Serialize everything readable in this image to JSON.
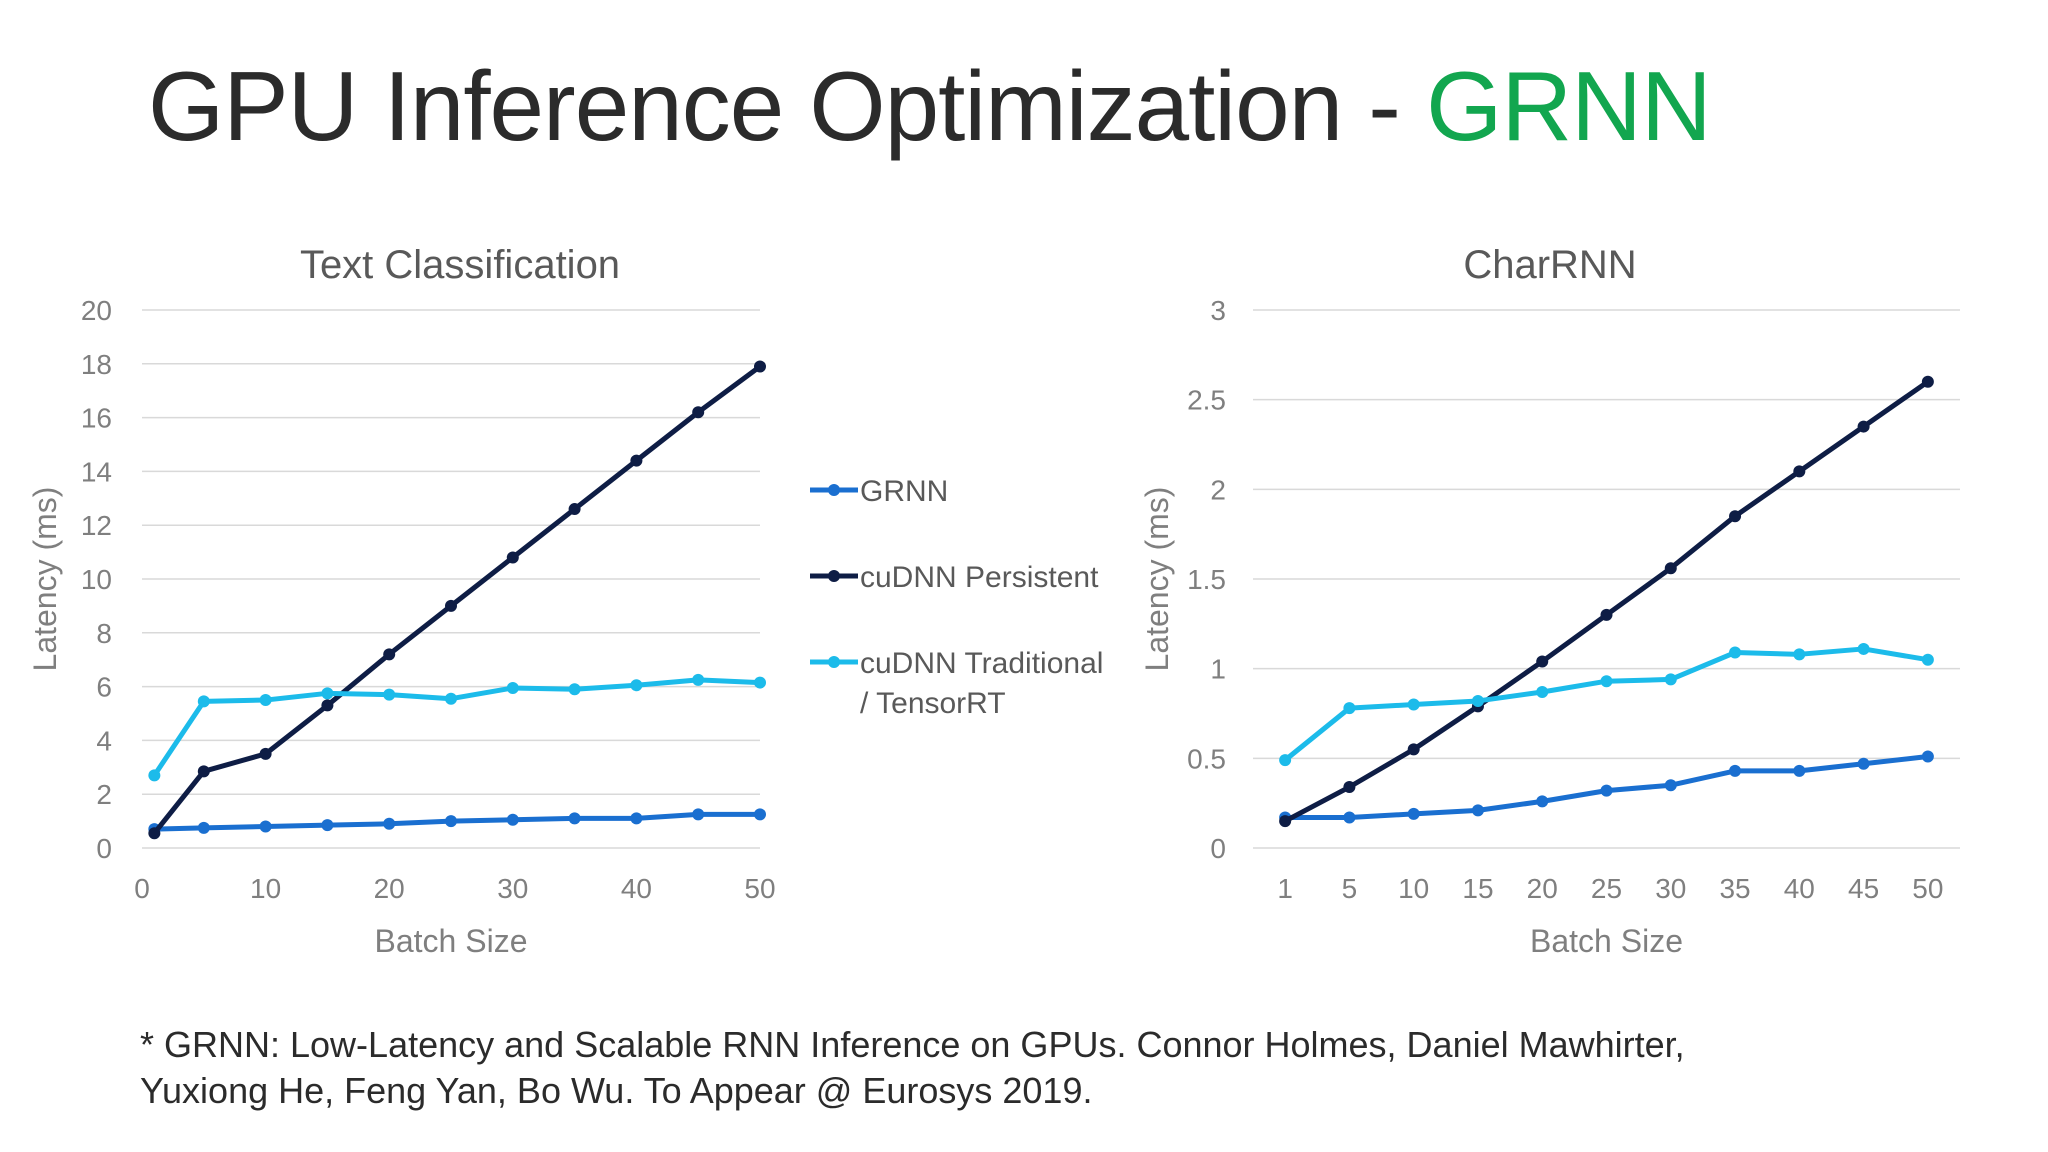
{
  "slide": {
    "title_main": "GPU Inference Optimization - ",
    "title_accent": "GRNN",
    "footnote_line1": "* GRNN: Low-Latency and Scalable RNN Inference on GPUs. Connor Holmes, Daniel Mawhirter,",
    "footnote_line2": "Yuxiong He, Feng Yan, Bo Wu.  To Appear @ Eurosys 2019."
  },
  "colors": {
    "grnn": "#1a6fd0",
    "cudnn_persistent": "#0e1d45",
    "cudnn_traditional": "#1cbbea",
    "grid": "#d9d9d9",
    "axis_text": "#7f7f7f",
    "title_accent": "#12a64f"
  },
  "legend": {
    "placement": "between-charts",
    "entries": [
      "GRNN",
      "cuDNN Persistent",
      "cuDNN Traditional / TensorRT"
    ]
  },
  "chart_data": [
    {
      "type": "line",
      "title": "Text Classification",
      "xlabel": "Batch Size",
      "ylabel": "Latency (ms)",
      "xlim": [
        0,
        50
      ],
      "ylim": [
        0,
        20
      ],
      "xticks": [
        "0",
        "10",
        "20",
        "30",
        "40",
        "50"
      ],
      "yticks": [
        "0",
        "2",
        "4",
        "6",
        "8",
        "10",
        "12",
        "14",
        "16",
        "18",
        "20"
      ],
      "grid": true,
      "x": [
        1,
        5,
        10,
        15,
        20,
        25,
        30,
        35,
        40,
        45,
        50
      ],
      "series": [
        {
          "name": "GRNN",
          "values": [
            0.7,
            0.75,
            0.8,
            0.85,
            0.9,
            1.0,
            1.05,
            1.1,
            1.1,
            1.25,
            1.25
          ]
        },
        {
          "name": "cuDNN Persistent",
          "values": [
            0.55,
            2.85,
            3.5,
            5.3,
            7.2,
            9.0,
            10.8,
            12.6,
            14.4,
            16.2,
            17.9
          ]
        },
        {
          "name": "cuDNN Traditional / TensorRT",
          "values": [
            2.7,
            5.45,
            5.5,
            5.75,
            5.7,
            5.55,
            5.95,
            5.9,
            6.05,
            6.25,
            6.15
          ]
        }
      ]
    },
    {
      "type": "line",
      "title": "CharRNN",
      "xlabel": "Batch Size",
      "ylabel": "Latency (ms)",
      "ylim": [
        0,
        3
      ],
      "categories": [
        "1",
        "5",
        "10",
        "15",
        "20",
        "25",
        "30",
        "35",
        "40",
        "45",
        "50"
      ],
      "yticks": [
        "0",
        "0.5",
        "1",
        "1.5",
        "2",
        "2.5",
        "3"
      ],
      "grid": true,
      "series": [
        {
          "name": "GRNN",
          "values": [
            0.17,
            0.17,
            0.19,
            0.21,
            0.26,
            0.32,
            0.35,
            0.43,
            0.43,
            0.47,
            0.51
          ]
        },
        {
          "name": "cuDNN Persistent",
          "values": [
            0.15,
            0.34,
            0.55,
            0.79,
            1.04,
            1.3,
            1.56,
            1.85,
            2.1,
            2.35,
            2.6
          ]
        },
        {
          "name": "cuDNN Traditional / TensorRT",
          "values": [
            0.49,
            0.78,
            0.8,
            0.82,
            0.87,
            0.93,
            0.94,
            1.09,
            1.08,
            1.11,
            1.05
          ]
        }
      ]
    }
  ]
}
